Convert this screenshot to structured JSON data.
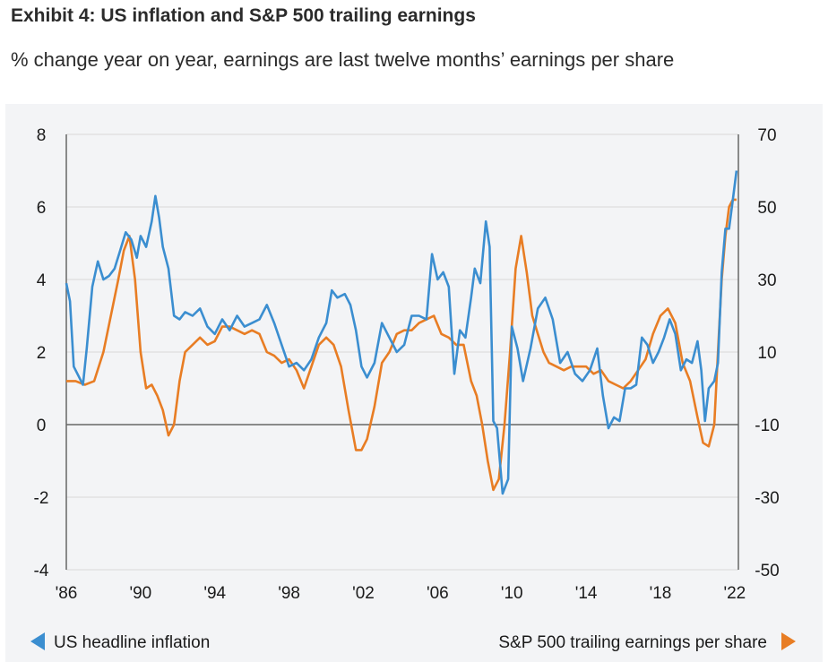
{
  "title": "Exhibit 4: US inflation and S&P 500 trailing earnings",
  "subtitle": "% change year on year, earnings are last twelve months’ earnings per share",
  "chart_data": {
    "type": "line",
    "x_ticks": [
      "'86",
      "'90",
      "'94",
      "'98",
      "'02",
      "'06",
      "'10",
      "'14",
      "'18",
      "'22"
    ],
    "x_tick_years": [
      1986,
      1990,
      1994,
      1998,
      2002,
      2006,
      2010,
      2014,
      2018,
      2022
    ],
    "xlim": [
      1986,
      2022.2
    ],
    "left_axis": {
      "ylim": [
        -4,
        8
      ],
      "ticks": [
        "8",
        "6",
        "4",
        "2",
        "0",
        "-2",
        "-4"
      ],
      "tick_values": [
        8,
        6,
        4,
        2,
        0,
        -2,
        -4
      ]
    },
    "right_axis": {
      "ylim": [
        -50,
        70
      ],
      "ticks": [
        "70",
        "50",
        "30",
        "10",
        "-10",
        "-30",
        "-50"
      ],
      "tick_values": [
        70,
        50,
        30,
        10,
        -10,
        -30,
        -50
      ]
    },
    "zero_line": 0,
    "legend_left": "US headline inflation",
    "legend_right": "S&P 500 trailing earnings per share",
    "colors": {
      "inflation": "#3b8ed0",
      "earnings": "#e87d24",
      "axis": "#666666",
      "panel": "#f3f4f6",
      "grid": "#d8d8d8"
    },
    "series": [
      {
        "name": "US headline inflation",
        "axis": "left",
        "x": [
          1986.0,
          1986.2,
          1986.4,
          1986.6,
          1986.9,
          1987.1,
          1987.4,
          1987.7,
          1988.0,
          1988.3,
          1988.6,
          1988.9,
          1989.2,
          1989.5,
          1989.8,
          1990.0,
          1990.3,
          1990.6,
          1990.8,
          1991.0,
          1991.2,
          1991.5,
          1991.8,
          1992.1,
          1992.4,
          1992.8,
          1993.2,
          1993.6,
          1994.0,
          1994.4,
          1994.8,
          1995.2,
          1995.6,
          1996.0,
          1996.4,
          1996.8,
          1997.2,
          1997.6,
          1998.0,
          1998.4,
          1998.8,
          1999.2,
          1999.6,
          2000.0,
          2000.3,
          2000.6,
          2001.0,
          2001.3,
          2001.6,
          2001.9,
          2002.2,
          2002.6,
          2003.0,
          2003.4,
          2003.8,
          2004.2,
          2004.6,
          2005.0,
          2005.4,
          2005.7,
          2006.0,
          2006.3,
          2006.6,
          2006.9,
          2007.2,
          2007.5,
          2007.8,
          2008.0,
          2008.3,
          2008.6,
          2008.8,
          2009.0,
          2009.2,
          2009.5,
          2009.8,
          2010.0,
          2010.3,
          2010.6,
          2011.0,
          2011.4,
          2011.8,
          2012.2,
          2012.6,
          2013.0,
          2013.4,
          2013.8,
          2014.2,
          2014.6,
          2014.9,
          2015.2,
          2015.5,
          2015.8,
          2016.1,
          2016.4,
          2016.7,
          2017.0,
          2017.3,
          2017.6,
          2017.9,
          2018.2,
          2018.5,
          2018.8,
          2019.1,
          2019.4,
          2019.7,
          2020.0,
          2020.2,
          2020.4,
          2020.6,
          2020.9,
          2021.1,
          2021.3,
          2021.5,
          2021.7,
          2021.9,
          2022.1
        ],
        "values": [
          3.9,
          3.4,
          1.6,
          1.4,
          1.1,
          2.1,
          3.8,
          4.5,
          4.0,
          4.1,
          4.3,
          4.8,
          5.3,
          5.1,
          4.6,
          5.2,
          4.9,
          5.6,
          6.3,
          5.7,
          4.9,
          4.3,
          3.0,
          2.9,
          3.1,
          3.0,
          3.2,
          2.7,
          2.5,
          2.9,
          2.6,
          3.0,
          2.7,
          2.8,
          2.9,
          3.3,
          2.8,
          2.2,
          1.6,
          1.7,
          1.5,
          1.8,
          2.4,
          2.8,
          3.7,
          3.5,
          3.6,
          3.3,
          2.6,
          1.6,
          1.3,
          1.7,
          2.8,
          2.4,
          2.0,
          2.2,
          3.0,
          3.0,
          2.9,
          4.7,
          4.0,
          4.2,
          3.8,
          1.4,
          2.6,
          2.4,
          3.5,
          4.3,
          3.9,
          5.6,
          4.9,
          0.1,
          -0.1,
          -1.9,
          -1.5,
          2.7,
          2.1,
          1.2,
          2.1,
          3.2,
          3.5,
          2.9,
          1.7,
          2.0,
          1.4,
          1.2,
          1.5,
          2.1,
          0.8,
          -0.1,
          0.2,
          0.1,
          1.0,
          1.0,
          1.1,
          2.4,
          2.2,
          1.7,
          2.0,
          2.4,
          2.9,
          2.5,
          1.5,
          1.8,
          1.7,
          2.3,
          1.5,
          0.1,
          1.0,
          1.2,
          1.7,
          4.2,
          5.4,
          5.4,
          6.2,
          7.0
        ]
      },
      {
        "name": "S&P 500 trailing earnings per share",
        "axis": "right",
        "x": [
          1986.0,
          1986.5,
          1987.0,
          1987.5,
          1988.0,
          1988.4,
          1988.8,
          1989.1,
          1989.4,
          1989.7,
          1990.0,
          1990.3,
          1990.6,
          1990.9,
          1991.2,
          1991.5,
          1991.8,
          1992.1,
          1992.4,
          1992.8,
          1993.2,
          1993.6,
          1994.0,
          1994.4,
          1994.8,
          1995.2,
          1995.6,
          1996.0,
          1996.4,
          1996.8,
          1997.2,
          1997.6,
          1998.0,
          1998.4,
          1998.8,
          1999.2,
          1999.6,
          2000.0,
          2000.4,
          2000.8,
          2001.2,
          2001.6,
          2001.9,
          2002.2,
          2002.6,
          2003.0,
          2003.4,
          2003.8,
          2004.2,
          2004.6,
          2005.0,
          2005.4,
          2005.8,
          2006.2,
          2006.6,
          2007.0,
          2007.4,
          2007.8,
          2008.1,
          2008.4,
          2008.7,
          2009.0,
          2009.3,
          2009.6,
          2009.9,
          2010.2,
          2010.5,
          2010.8,
          2011.1,
          2011.4,
          2011.7,
          2012.0,
          2012.4,
          2012.8,
          2013.2,
          2013.6,
          2014.0,
          2014.4,
          2014.8,
          2015.2,
          2015.6,
          2016.0,
          2016.4,
          2016.8,
          2017.2,
          2017.6,
          2018.0,
          2018.4,
          2018.8,
          2019.2,
          2019.6,
          2020.0,
          2020.3,
          2020.6,
          2020.9,
          2021.1,
          2021.3,
          2021.5,
          2021.7,
          2021.9,
          2022.1
        ],
        "values": [
          2,
          2,
          1,
          2,
          10,
          20,
          30,
          38,
          42,
          30,
          10,
          0,
          1,
          -2,
          -6,
          -13,
          -10,
          2,
          10,
          12,
          14,
          12,
          13,
          17,
          17,
          16,
          15,
          16,
          15,
          10,
          9,
          7,
          8,
          5,
          0,
          6,
          12,
          14,
          12,
          6,
          -6,
          -17,
          -17,
          -14,
          -5,
          7,
          10,
          15,
          16,
          16,
          18,
          19,
          20,
          15,
          14,
          12,
          12,
          2,
          -2,
          -10,
          -20,
          -28,
          -25,
          -10,
          10,
          33,
          42,
          32,
          20,
          15,
          10,
          7,
          6,
          5,
          6,
          6,
          6,
          4,
          5,
          2,
          1,
          0,
          2,
          5,
          8,
          15,
          20,
          22,
          18,
          7,
          2,
          -8,
          -15,
          -16,
          -10,
          10,
          30,
          42,
          50,
          52,
          52
        ]
      }
    ]
  }
}
